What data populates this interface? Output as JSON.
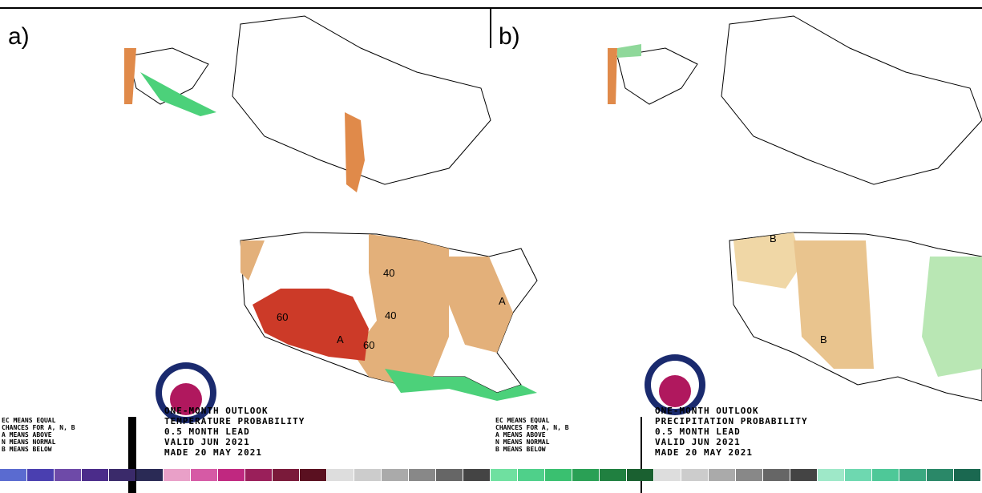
{
  "panels": [
    {
      "label": "a)",
      "title": "ONE-MONTH OUTLOOK",
      "subtitle": "TEMPERATURE PROBABILITY",
      "lead": "0.5 MONTH LEAD",
      "valid": "VALID JUN 2021",
      "made": "MADE 20 MAY 2021",
      "legend": [
        "EC MEANS EQUAL",
        "CHANCES FOR A, N, B",
        "A MEANS ABOVE",
        "N MEANS NORMAL",
        "B MEANS BELOW"
      ],
      "map_labels": [
        "60",
        "A",
        "60",
        "40",
        "40",
        "A"
      ]
    },
    {
      "label": "b)",
      "title": "ONE-MONTH OUTLOOK",
      "subtitle": "PRECIPITATION PROBABILITY",
      "lead": "0.5 MONTH LEAD",
      "valid": "VALID JUN 2021",
      "made": "MADE 20 MAY 2021",
      "legend": [
        "EC MEANS EQUAL",
        "CHANCES FOR A, N, B",
        "A MEANS ABOVE",
        "N MEANS NORMAL",
        "B MEANS BELOW"
      ],
      "map_labels": [
        "B",
        "B"
      ]
    }
  ]
}
